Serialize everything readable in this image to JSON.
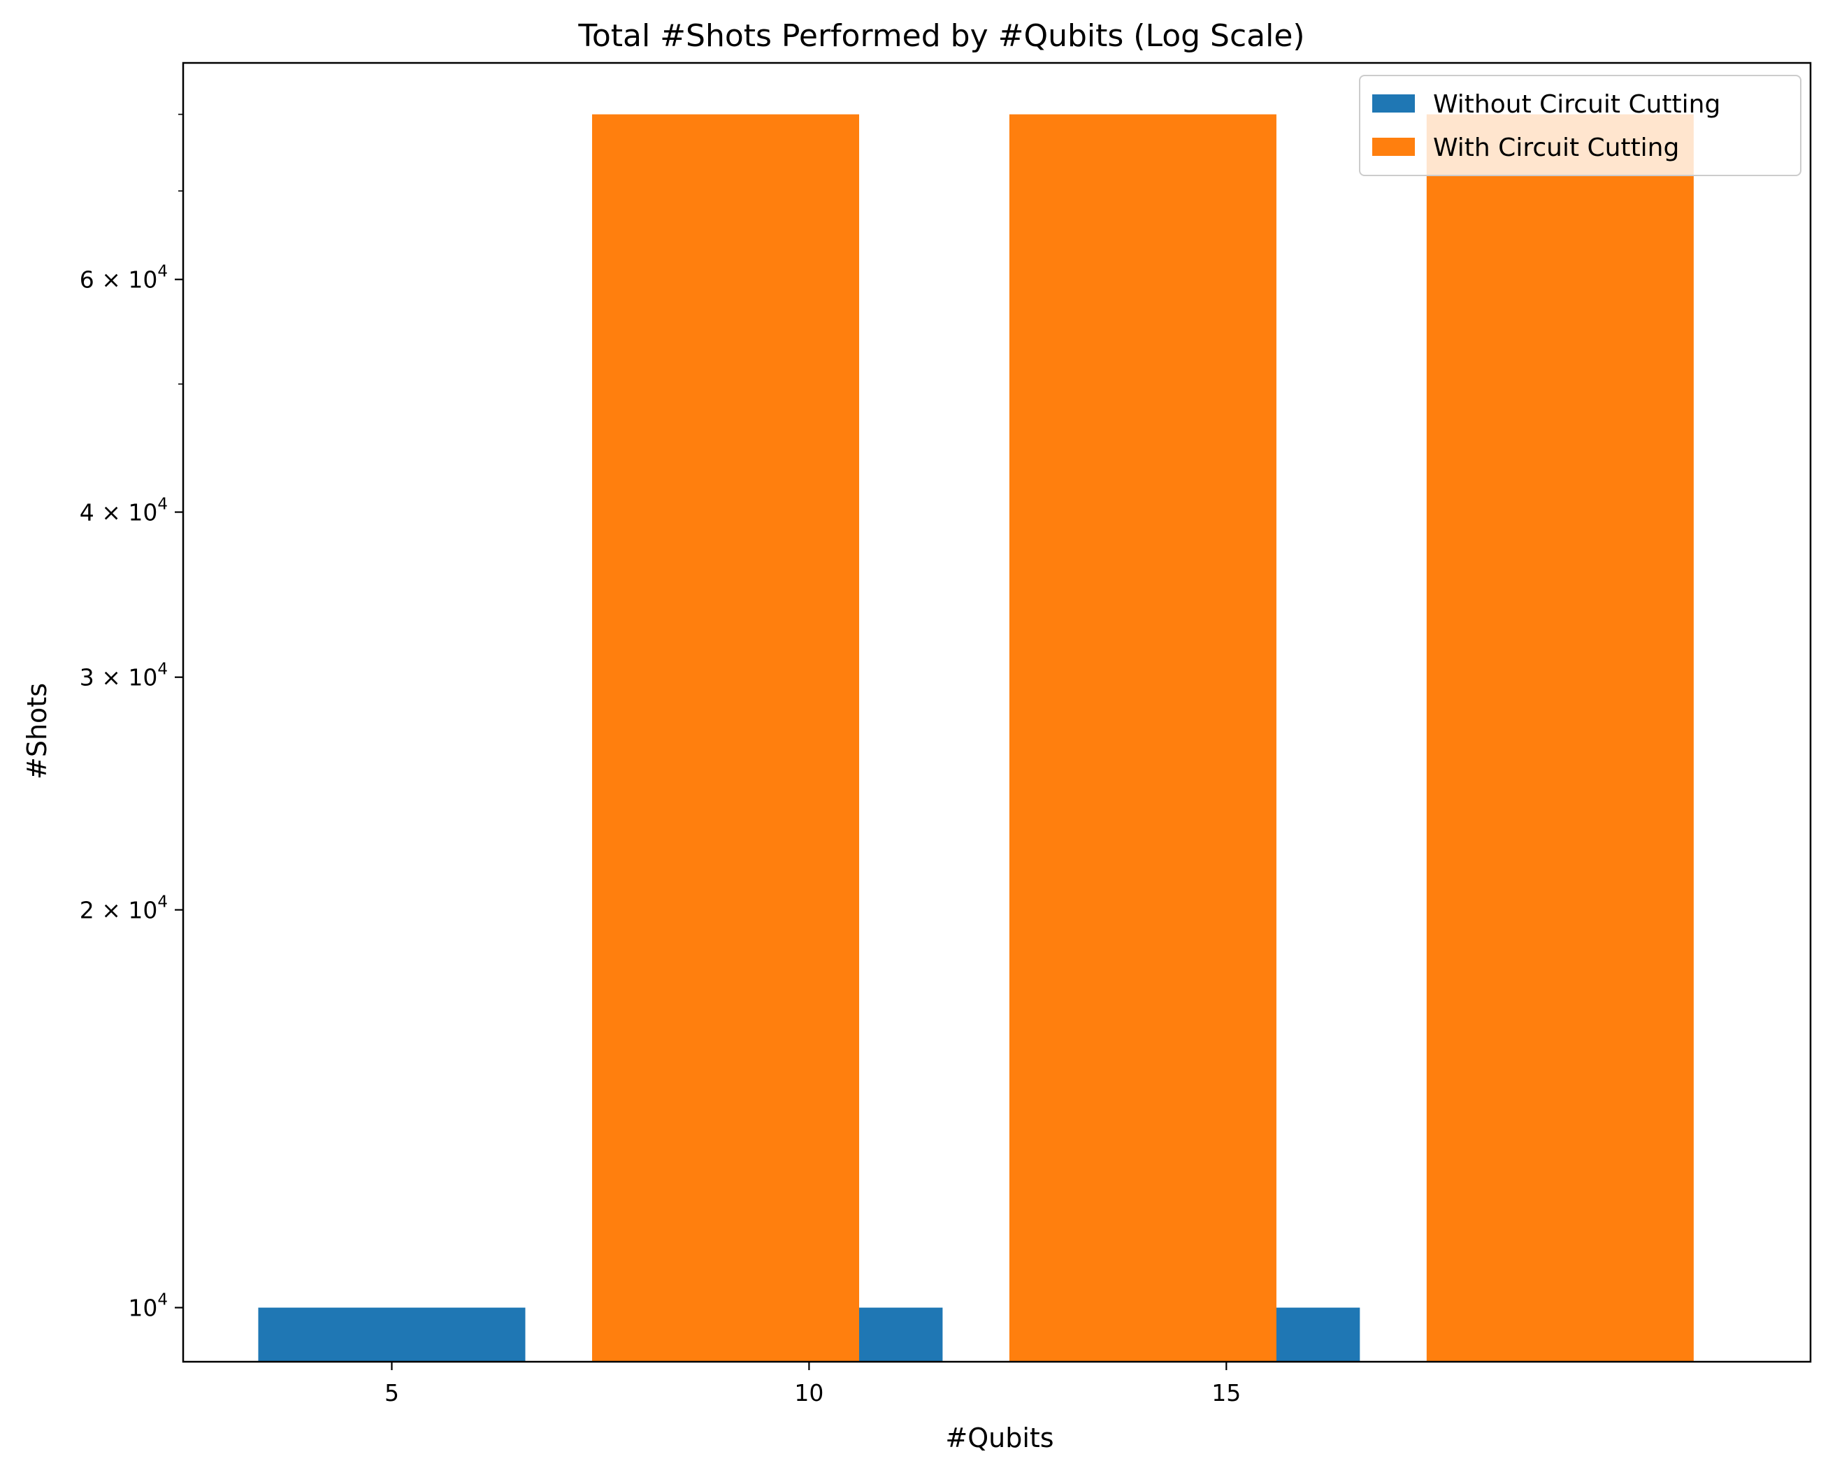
{
  "chart_data": {
    "type": "bar",
    "title": "Total #Shots Performed by #Qubits (Log Scale)",
    "xlabel": "#Qubits",
    "ylabel": "#Shots",
    "y_scale": "log",
    "ylim": [
      9100,
      87500
    ],
    "categories": [
      "5",
      "10",
      "15"
    ],
    "series": [
      {
        "name": "Without Circuit Cutting",
        "color": "#1f77b4",
        "values": [
          10000,
          10000,
          10000
        ]
      },
      {
        "name": "With Circuit Cutting",
        "color": "#ff7f0e",
        "values": [
          80000,
          80000,
          80000
        ]
      }
    ],
    "y_major_ticks": [
      {
        "value": 10000,
        "mantissa": "",
        "exponent": "4"
      },
      {
        "value": 20000,
        "mantissa": "2",
        "exponent": "4"
      },
      {
        "value": 30000,
        "mantissa": "3",
        "exponent": "4"
      },
      {
        "value": 40000,
        "mantissa": "4",
        "exponent": "4"
      },
      {
        "value": 60000,
        "mantissa": "6",
        "exponent": "4"
      }
    ],
    "y_minor_ticks": [
      50000,
      70000,
      80000
    ],
    "grid": false,
    "legend_position": "upper right"
  }
}
